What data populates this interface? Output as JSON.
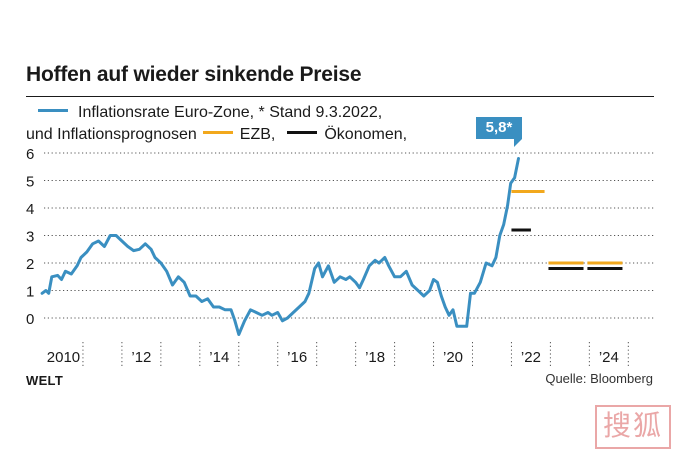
{
  "chart_data": {
    "type": "line",
    "title": "Hoffen auf wieder sinkende Preise",
    "legend": {
      "line1": "Inflationsrate Euro-Zone, * Stand 9.3.2022,",
      "line2_prefix": "und Inflationsprognosen",
      "ezb_label": "EZB,",
      "oekonomen_label": "Ökonomen,"
    },
    "callout": "5,8*",
    "ylim": [
      0,
      6
    ],
    "yticks": [
      "0",
      "1",
      "2",
      "3",
      "4",
      "5",
      "6"
    ],
    "xlim": [
      2010,
      2025.3
    ],
    "xticks": [
      {
        "label": "2010",
        "x": 2010
      },
      {
        "label": "’12",
        "x": 2012
      },
      {
        "label": "’14",
        "x": 2014
      },
      {
        "label": "’16",
        "x": 2016
      },
      {
        "label": "’18",
        "x": 2018
      },
      {
        "label": "’20",
        "x": 2020
      },
      {
        "label": "’22",
        "x": 2022
      },
      {
        "label": "’24",
        "x": 2024
      }
    ],
    "series": [
      {
        "name": "Inflationsrate Euro-Zone",
        "color": "#3a8fc1",
        "points": [
          [
            2009.95,
            0.9
          ],
          [
            2010.05,
            1.0
          ],
          [
            2010.12,
            0.9
          ],
          [
            2010.2,
            1.5
          ],
          [
            2010.35,
            1.55
          ],
          [
            2010.45,
            1.4
          ],
          [
            2010.55,
            1.7
          ],
          [
            2010.7,
            1.6
          ],
          [
            2010.85,
            1.9
          ],
          [
            2010.95,
            2.2
          ],
          [
            2011.1,
            2.4
          ],
          [
            2011.25,
            2.7
          ],
          [
            2011.4,
            2.8
          ],
          [
            2011.55,
            2.6
          ],
          [
            2011.7,
            3.0
          ],
          [
            2011.85,
            3.0
          ],
          [
            2012.0,
            2.8
          ],
          [
            2012.15,
            2.6
          ],
          [
            2012.3,
            2.45
          ],
          [
            2012.45,
            2.5
          ],
          [
            2012.6,
            2.7
          ],
          [
            2012.75,
            2.5
          ],
          [
            2012.85,
            2.2
          ],
          [
            2013.0,
            2.0
          ],
          [
            2013.15,
            1.7
          ],
          [
            2013.3,
            1.2
          ],
          [
            2013.45,
            1.5
          ],
          [
            2013.6,
            1.3
          ],
          [
            2013.75,
            0.8
          ],
          [
            2013.9,
            0.8
          ],
          [
            2014.05,
            0.6
          ],
          [
            2014.2,
            0.7
          ],
          [
            2014.35,
            0.4
          ],
          [
            2014.5,
            0.4
          ],
          [
            2014.65,
            0.3
          ],
          [
            2014.8,
            0.3
          ],
          [
            2014.9,
            -0.1
          ],
          [
            2015.0,
            -0.6
          ],
          [
            2015.15,
            -0.1
          ],
          [
            2015.3,
            0.3
          ],
          [
            2015.45,
            0.2
          ],
          [
            2015.6,
            0.1
          ],
          [
            2015.75,
            0.2
          ],
          [
            2015.85,
            0.1
          ],
          [
            2016.0,
            0.2
          ],
          [
            2016.12,
            -0.1
          ],
          [
            2016.25,
            0.0
          ],
          [
            2016.4,
            0.2
          ],
          [
            2016.55,
            0.4
          ],
          [
            2016.7,
            0.6
          ],
          [
            2016.8,
            0.9
          ],
          [
            2016.95,
            1.8
          ],
          [
            2017.05,
            2.0
          ],
          [
            2017.15,
            1.5
          ],
          [
            2017.3,
            1.9
          ],
          [
            2017.45,
            1.3
          ],
          [
            2017.6,
            1.5
          ],
          [
            2017.75,
            1.4
          ],
          [
            2017.85,
            1.5
          ],
          [
            2018.0,
            1.3
          ],
          [
            2018.1,
            1.1
          ],
          [
            2018.2,
            1.4
          ],
          [
            2018.35,
            1.9
          ],
          [
            2018.5,
            2.1
          ],
          [
            2018.6,
            2.0
          ],
          [
            2018.75,
            2.2
          ],
          [
            2018.85,
            1.9
          ],
          [
            2019.0,
            1.5
          ],
          [
            2019.15,
            1.5
          ],
          [
            2019.3,
            1.7
          ],
          [
            2019.45,
            1.2
          ],
          [
            2019.6,
            1.0
          ],
          [
            2019.75,
            0.8
          ],
          [
            2019.9,
            1.0
          ],
          [
            2020.0,
            1.4
          ],
          [
            2020.1,
            1.3
          ],
          [
            2020.2,
            0.8
          ],
          [
            2020.3,
            0.4
          ],
          [
            2020.4,
            0.1
          ],
          [
            2020.5,
            0.3
          ],
          [
            2020.6,
            -0.3
          ],
          [
            2020.7,
            -0.3
          ],
          [
            2020.85,
            -0.3
          ],
          [
            2020.95,
            0.9
          ],
          [
            2021.05,
            0.9
          ],
          [
            2021.2,
            1.3
          ],
          [
            2021.35,
            2.0
          ],
          [
            2021.5,
            1.9
          ],
          [
            2021.6,
            2.2
          ],
          [
            2021.7,
            3.0
          ],
          [
            2021.8,
            3.4
          ],
          [
            2021.9,
            4.1
          ],
          [
            2021.98,
            4.9
          ],
          [
            2022.08,
            5.1
          ],
          [
            2022.18,
            5.8
          ]
        ]
      },
      {
        "name": "EZB",
        "color": "#f2a81d",
        "segments": [
          {
            "x": [
              2022.0,
              2022.85
            ],
            "y": 4.6
          },
          {
            "x": [
              2022.95,
              2023.85
            ],
            "y": 2.0
          },
          {
            "x": [
              2023.95,
              2024.85
            ],
            "y": 2.0
          }
        ]
      },
      {
        "name": "Ökonomen",
        "color": "#111111",
        "segments": [
          {
            "x": [
              2022.0,
              2022.5
            ],
            "y": 3.2
          },
          {
            "x": [
              2022.95,
              2023.85
            ],
            "y": 1.8
          },
          {
            "x": [
              2023.95,
              2024.85
            ],
            "y": 1.8
          }
        ]
      }
    ]
  },
  "footer": {
    "brand": "WELT",
    "source": "Quelle: Bloomberg"
  },
  "watermark": "搜狐"
}
